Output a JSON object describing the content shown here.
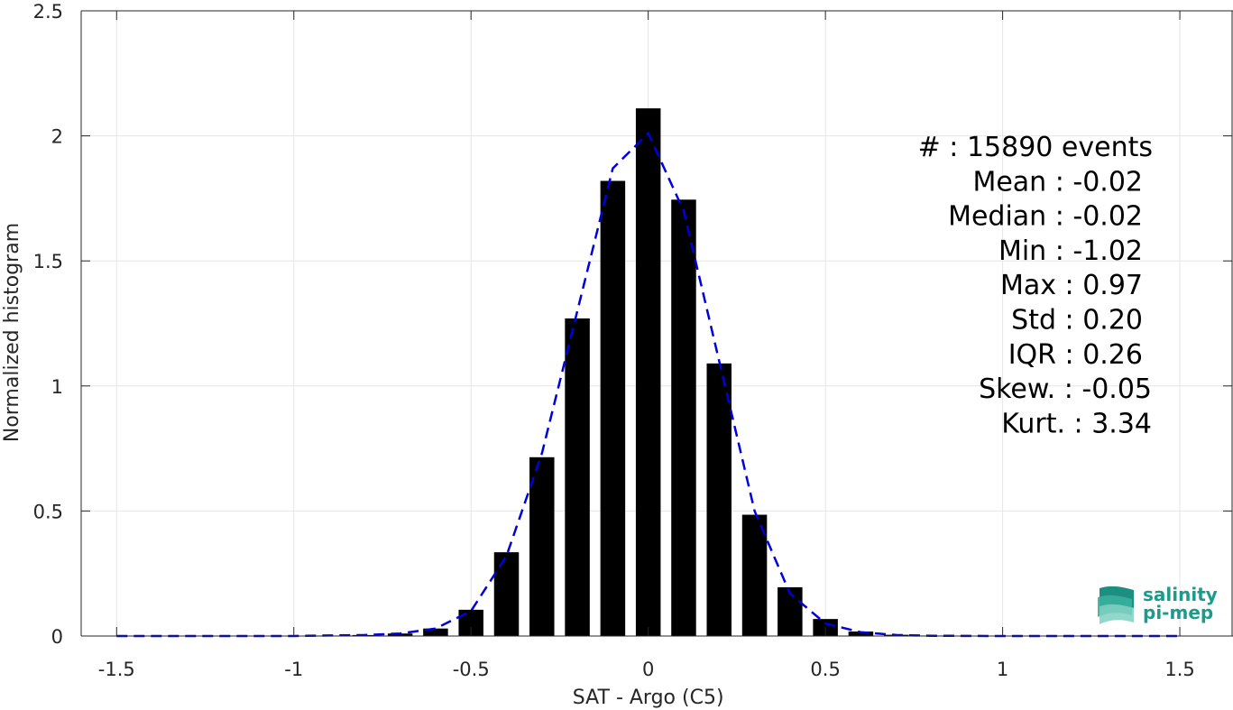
{
  "chart_data": {
    "type": "bar",
    "xlabel": "SAT - Argo (C5)",
    "ylabel": "Normalized histogram",
    "xlim": [
      -1.6,
      1.65
    ],
    "ylim": [
      0,
      2.5
    ],
    "xticks": [
      -1.5,
      -1,
      -0.5,
      0,
      0.5,
      1,
      1.5
    ],
    "xtick_labels": [
      "-1.5",
      "-1",
      "-0.5",
      "0",
      "0.5",
      "1",
      "1.5"
    ],
    "yticks": [
      0,
      0.5,
      1,
      1.5,
      2,
      2.5
    ],
    "ytick_labels": [
      "0",
      "0.5",
      "1",
      "1.5",
      "2",
      "2.5"
    ],
    "grid": true,
    "bar_width": 0.07,
    "bar_color": "#000000",
    "bars": [
      {
        "x": -0.9,
        "y": 0.002
      },
      {
        "x": -0.8,
        "y": 0.004
      },
      {
        "x": -0.7,
        "y": 0.01
      },
      {
        "x": -0.6,
        "y": 0.03
      },
      {
        "x": -0.5,
        "y": 0.105
      },
      {
        "x": -0.4,
        "y": 0.335
      },
      {
        "x": -0.3,
        "y": 0.715
      },
      {
        "x": -0.2,
        "y": 1.27
      },
      {
        "x": -0.1,
        "y": 1.82
      },
      {
        "x": 0.0,
        "y": 2.11
      },
      {
        "x": 0.1,
        "y": 1.745
      },
      {
        "x": 0.2,
        "y": 1.09
      },
      {
        "x": 0.3,
        "y": 0.485
      },
      {
        "x": 0.4,
        "y": 0.195
      },
      {
        "x": 0.5,
        "y": 0.068
      },
      {
        "x": 0.6,
        "y": 0.018
      },
      {
        "x": 0.7,
        "y": 0.005
      },
      {
        "x": 0.8,
        "y": 0.002
      }
    ],
    "fit_curve": {
      "color": "#0000dd",
      "style": "dashed",
      "points": [
        [
          -1.5,
          0.0
        ],
        [
          -1.2,
          0.0
        ],
        [
          -1.0,
          0.0
        ],
        [
          -0.9,
          0.002
        ],
        [
          -0.8,
          0.004
        ],
        [
          -0.7,
          0.01
        ],
        [
          -0.6,
          0.03
        ],
        [
          -0.5,
          0.1
        ],
        [
          -0.4,
          0.32
        ],
        [
          -0.3,
          0.73
        ],
        [
          -0.2,
          1.3
        ],
        [
          -0.1,
          1.87
        ],
        [
          0.0,
          2.01
        ],
        [
          0.1,
          1.7
        ],
        [
          0.2,
          1.1
        ],
        [
          0.3,
          0.5
        ],
        [
          0.4,
          0.17
        ],
        [
          0.5,
          0.05
        ],
        [
          0.6,
          0.015
        ],
        [
          0.7,
          0.004
        ],
        [
          0.8,
          0.001
        ],
        [
          1.0,
          0.0
        ],
        [
          1.2,
          0.0
        ],
        [
          1.5,
          0.0
        ]
      ]
    },
    "stats": [
      "#  : 15890 events",
      "Mean : -0.02",
      "Median : -0.02",
      "Min : -1.02",
      "Max : 0.97",
      "Std : 0.20",
      "IQR : 0.26",
      "Skew. : -0.05",
      "Kurt. : 3.34"
    ]
  },
  "logo": {
    "line1": "salinity",
    "line2": "pi-mep"
  }
}
